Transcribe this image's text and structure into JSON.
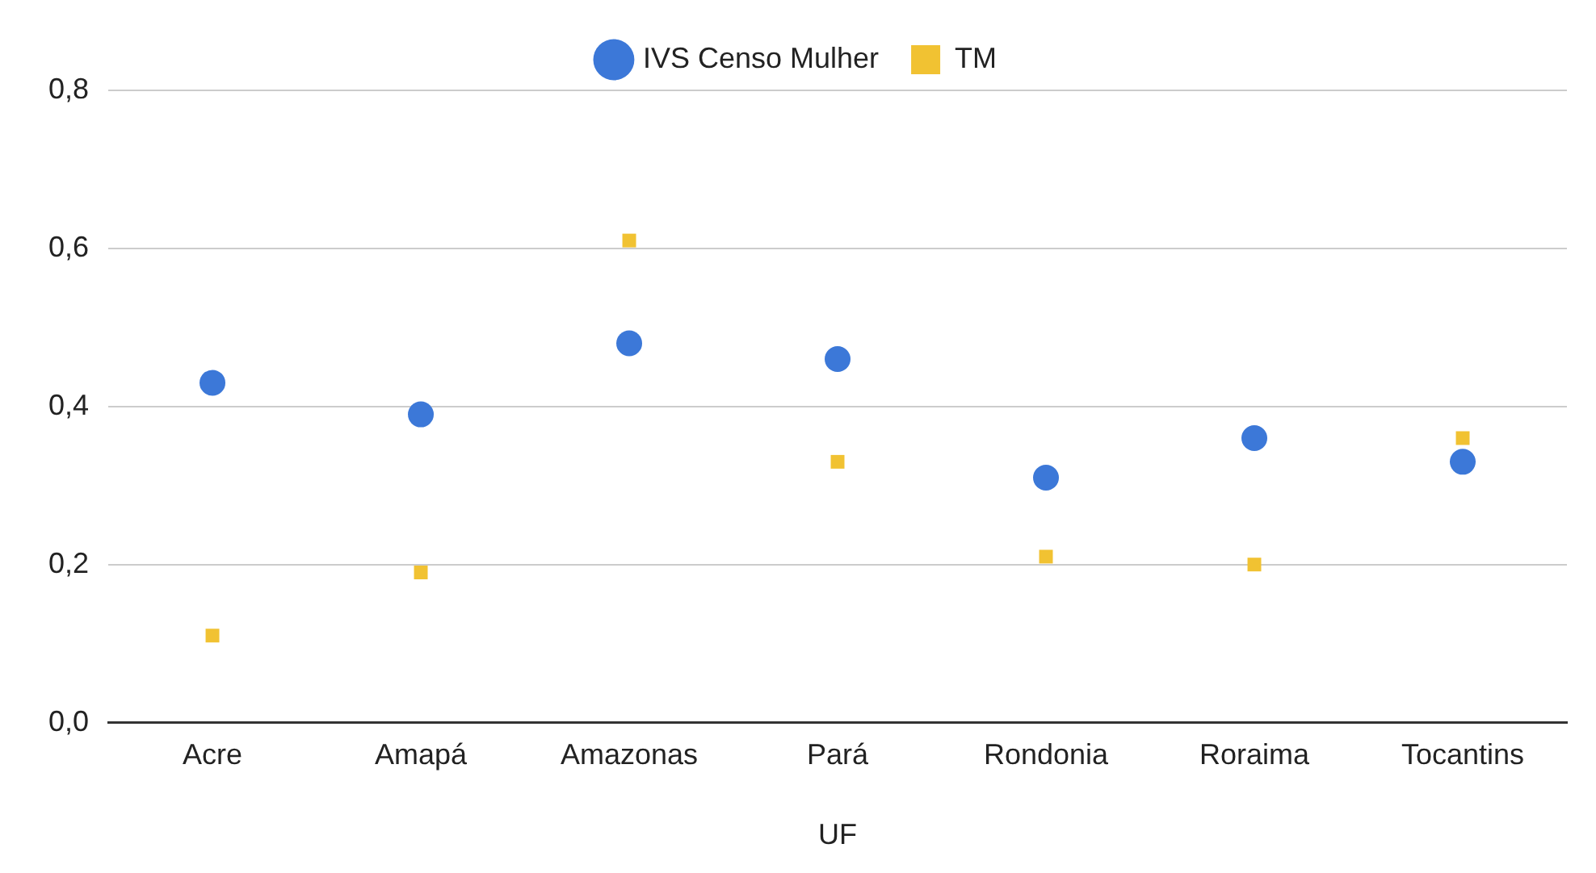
{
  "chart_data": {
    "type": "scatter",
    "xlabel": "UF",
    "categories": [
      "Acre",
      "Amapá",
      "Amazonas",
      "Pará",
      "Rondonia",
      "Roraima",
      "Tocantins"
    ],
    "series": [
      {
        "name": "IVS Censo Mulher",
        "color": "#3c78d8",
        "marker": "circle",
        "values": [
          0.43,
          0.39,
          0.48,
          0.46,
          0.31,
          0.36,
          0.33
        ]
      },
      {
        "name": "TM",
        "color": "#f1c232",
        "marker": "square",
        "values": [
          0.11,
          0.19,
          0.61,
          0.33,
          0.21,
          0.2,
          0.36
        ]
      }
    ],
    "ylim": [
      0,
      0.8
    ],
    "yticks": [
      {
        "value": 0,
        "label": "0,0"
      },
      {
        "value": 0.2,
        "label": "0,2"
      },
      {
        "value": 0.4,
        "label": "0,4"
      },
      {
        "value": 0.6,
        "label": "0,6"
      },
      {
        "value": 0.8,
        "label": "0,8"
      }
    ],
    "grid": "y",
    "legend": "top"
  }
}
